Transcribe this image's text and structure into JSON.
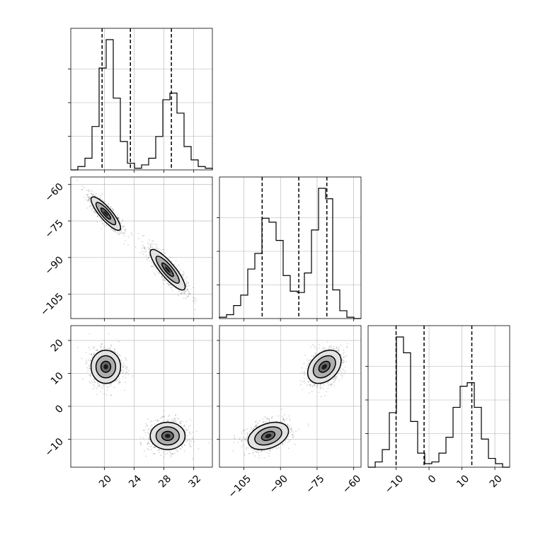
{
  "chart_data": {
    "type": "corner",
    "description_parameters": 3,
    "axes": [
      {
        "index": 0,
        "range": [
          15.5,
          34.5
        ],
        "ticks": [
          20,
          24,
          28,
          32
        ],
        "tick_labels": [
          "20",
          "24",
          "28",
          "32"
        ],
        "quantiles": [
          19.7,
          23.5,
          29.0
        ],
        "hist": [
          [
            15.5,
            0.0
          ],
          [
            16.45,
            0.02
          ],
          [
            17.4,
            0.07
          ],
          [
            18.35,
            0.26
          ],
          [
            19.3,
            0.61
          ],
          [
            20.25,
            0.78
          ],
          [
            21.2,
            0.43
          ],
          [
            22.15,
            0.17
          ],
          [
            23.1,
            0.04
          ],
          [
            24.05,
            0.01
          ],
          [
            25.0,
            0.03
          ],
          [
            25.95,
            0.07
          ],
          [
            26.9,
            0.2
          ],
          [
            27.85,
            0.42
          ],
          [
            28.8,
            0.46
          ],
          [
            29.75,
            0.34
          ],
          [
            30.7,
            0.14
          ],
          [
            31.65,
            0.06
          ],
          [
            32.6,
            0.02
          ],
          [
            33.55,
            0.01
          ]
        ]
      },
      {
        "index": 1,
        "range": [
          -115,
          -57
        ],
        "ticks": [
          -105,
          -90,
          -75,
          -60
        ],
        "tick_labels": [
          "−105",
          "−90",
          "−75",
          "−60"
        ],
        "quantiles": [
          -97.5,
          -82.5,
          -71.0
        ],
        "hist": [
          [
            -115.0,
            0.01
          ],
          [
            -112.1,
            0.03
          ],
          [
            -109.2,
            0.1
          ],
          [
            -106.3,
            0.18
          ],
          [
            -103.4,
            0.38
          ],
          [
            -100.5,
            0.5
          ],
          [
            -97.6,
            0.77
          ],
          [
            -94.7,
            0.74
          ],
          [
            -91.8,
            0.6
          ],
          [
            -88.9,
            0.33
          ],
          [
            -86.0,
            0.21
          ],
          [
            -83.1,
            0.2
          ],
          [
            -80.2,
            0.35
          ],
          [
            -77.3,
            0.68
          ],
          [
            -74.4,
            1.0
          ],
          [
            -71.5,
            0.92
          ],
          [
            -68.6,
            0.22
          ],
          [
            -65.7,
            0.06
          ],
          [
            -62.8,
            0.01
          ],
          [
            -59.9,
            0.0
          ]
        ]
      },
      {
        "index": 2,
        "range": [
          -18.5,
          24.5
        ],
        "ticks": [
          -10,
          0,
          10,
          20
        ],
        "tick_labels": [
          "−10",
          "0",
          "10",
          "20"
        ],
        "quantiles": [
          -10.0,
          -1.5,
          13.0
        ],
        "hist": [
          [
            -18.5,
            0.0
          ],
          [
            -16.35,
            0.03
          ],
          [
            -14.2,
            0.1
          ],
          [
            -12.05,
            0.31
          ],
          [
            -9.9,
            0.74
          ],
          [
            -7.75,
            0.65
          ],
          [
            -5.6,
            0.26
          ],
          [
            -3.45,
            0.08
          ],
          [
            -1.3,
            0.02
          ],
          [
            0.85,
            0.03
          ],
          [
            3.0,
            0.08
          ],
          [
            5.15,
            0.17
          ],
          [
            7.3,
            0.34
          ],
          [
            9.45,
            0.46
          ],
          [
            11.6,
            0.48
          ],
          [
            13.75,
            0.34
          ],
          [
            15.9,
            0.16
          ],
          [
            18.05,
            0.05
          ],
          [
            20.2,
            0.02
          ],
          [
            22.35,
            0.0
          ]
        ]
      }
    ],
    "modes": [
      {
        "center": [
          20.2,
          -72.0,
          12.0
        ],
        "sd": [
          1.1,
          3.8,
          2.8
        ],
        "weight": 0.5
      },
      {
        "center": [
          28.5,
          -95.0,
          -9.0
        ],
        "sd": [
          1.3,
          4.6,
          2.3
        ],
        "weight": 0.5
      }
    ],
    "correlations": {
      "1_0": -0.85,
      "2_0": 0.0,
      "2_1": 0.35
    },
    "contour_levels": [
      0.6,
      1.2,
      1.8
    ],
    "grid": true,
    "legend": "none",
    "title": "",
    "xlabel": "",
    "ylabel": ""
  }
}
